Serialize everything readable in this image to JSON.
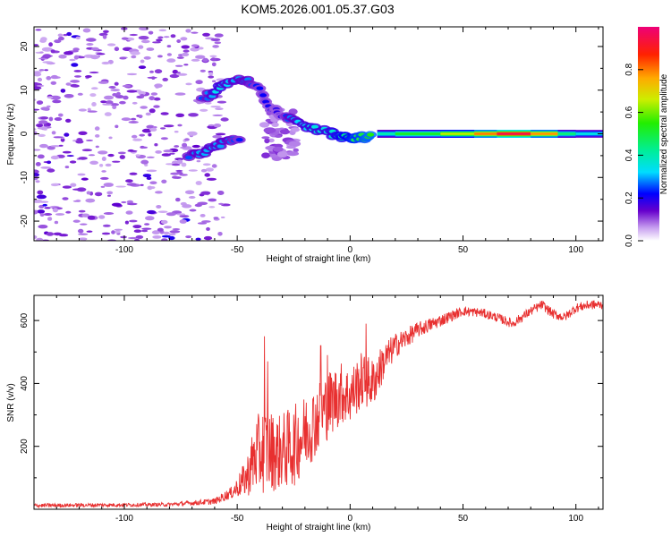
{
  "title": "KOM5.2026.001.05.37.G03",
  "chart_data": [
    {
      "type": "heatmap",
      "xlabel": "Height of straight line (km)",
      "ylabel": "Frequency (Hz)",
      "xlim": [
        -140,
        112
      ],
      "ylim": [
        -24.5,
        24.5
      ],
      "xticks": [
        -100,
        -50,
        0,
        50,
        100
      ],
      "yticks": [
        -20,
        -10,
        0,
        10,
        20
      ],
      "colorbar": {
        "label": "Normalized spectral amplitude",
        "range": [
          0,
          1
        ],
        "ticks": [
          "0.0",
          "0.2",
          "0.4",
          "0.6",
          "0.8"
        ]
      },
      "signal_track": [
        {
          "x": -65,
          "f": 8.0,
          "amp": 0.25
        },
        {
          "x": -58,
          "f": 10.5,
          "amp": 0.35
        },
        {
          "x": -52,
          "f": 12.0,
          "amp": 0.3
        },
        {
          "x": -46,
          "f": 12.5,
          "amp": 0.28
        },
        {
          "x": -40,
          "f": 10.0,
          "amp": 0.22
        },
        {
          "x": -35,
          "f": 6.0,
          "amp": 0.2
        },
        {
          "x": -30,
          "f": 4.5,
          "amp": 0.18
        },
        {
          "x": -25,
          "f": 3.0,
          "amp": 0.3
        },
        {
          "x": -18,
          "f": 1.5,
          "amp": 0.35
        },
        {
          "x": -10,
          "f": 0.5,
          "amp": 0.35
        },
        {
          "x": -5,
          "f": -0.8,
          "amp": 0.4
        },
        {
          "x": 0,
          "f": -1.0,
          "amp": 0.45
        },
        {
          "x": 5,
          "f": -0.8,
          "amp": 0.5
        },
        {
          "x": 10,
          "f": -0.5,
          "amp": 0.55
        }
      ],
      "signal_track_mirror": [
        {
          "x": -72,
          "f": -5.0,
          "amp": 0.25
        },
        {
          "x": -66,
          "f": -4.5,
          "amp": 0.3
        },
        {
          "x": -60,
          "f": -3.0,
          "amp": 0.3
        },
        {
          "x": -54,
          "f": -1.5,
          "amp": 0.28
        },
        {
          "x": -48,
          "f": -1.0,
          "amp": 0.22
        }
      ],
      "steady_band": {
        "f": 0,
        "segments": [
          {
            "x0": 12,
            "x1": 20,
            "amp": 0.4
          },
          {
            "x0": 20,
            "x1": 40,
            "amp": 0.52
          },
          {
            "x0": 40,
            "x1": 55,
            "amp": 0.65
          },
          {
            "x0": 55,
            "x1": 65,
            "amp": 0.8
          },
          {
            "x0": 65,
            "x1": 80,
            "amp": 0.95
          },
          {
            "x0": 80,
            "x1": 92,
            "amp": 0.78
          },
          {
            "x0": 92,
            "x1": 100,
            "amp": 0.45
          },
          {
            "x0": 100,
            "x1": 112,
            "amp": 0.35
          }
        ]
      },
      "noise_region": {
        "x0": -140,
        "x1": -55,
        "amp": 0.05
      }
    },
    {
      "type": "line",
      "xlabel": "Height of straight line (km)",
      "ylabel": "SNR (v/v)",
      "xlim": [
        -140,
        112
      ],
      "ylim": [
        0,
        680
      ],
      "xticks": [
        -100,
        -50,
        0,
        50,
        100
      ],
      "yticks": [
        200,
        400,
        600
      ],
      "series": [
        {
          "name": "SNR",
          "color": "#e83030",
          "envelope": [
            {
              "x": -140,
              "mean": 12,
              "noise": 6
            },
            {
              "x": -80,
              "mean": 15,
              "noise": 6
            },
            {
              "x": -60,
              "mean": 25,
              "noise": 10
            },
            {
              "x": -52,
              "mean": 55,
              "noise": 20
            },
            {
              "x": -46,
              "mean": 100,
              "noise": 60
            },
            {
              "x": -42,
              "mean": 170,
              "noise": 120
            },
            {
              "x": -38,
              "mean": 190,
              "noise": 140
            },
            {
              "x": -32,
              "mean": 180,
              "noise": 120
            },
            {
              "x": -25,
              "mean": 200,
              "noise": 130
            },
            {
              "x": -18,
              "mean": 260,
              "noise": 120
            },
            {
              "x": -10,
              "mean": 330,
              "noise": 110
            },
            {
              "x": -4,
              "mean": 370,
              "noise": 100
            },
            {
              "x": 0,
              "mean": 360,
              "noise": 90
            },
            {
              "x": 5,
              "mean": 410,
              "noise": 90
            },
            {
              "x": 10,
              "mean": 400,
              "noise": 80
            },
            {
              "x": 15,
              "mean": 470,
              "noise": 60
            },
            {
              "x": 20,
              "mean": 520,
              "noise": 40
            },
            {
              "x": 30,
              "mean": 570,
              "noise": 25
            },
            {
              "x": 40,
              "mean": 600,
              "noise": 20
            },
            {
              "x": 50,
              "mean": 630,
              "noise": 15
            },
            {
              "x": 58,
              "mean": 625,
              "noise": 15
            },
            {
              "x": 65,
              "mean": 610,
              "noise": 15
            },
            {
              "x": 72,
              "mean": 590,
              "noise": 15
            },
            {
              "x": 80,
              "mean": 630,
              "noise": 15
            },
            {
              "x": 85,
              "mean": 650,
              "noise": 15
            },
            {
              "x": 90,
              "mean": 620,
              "noise": 15
            },
            {
              "x": 95,
              "mean": 610,
              "noise": 15
            },
            {
              "x": 100,
              "mean": 640,
              "noise": 15
            },
            {
              "x": 106,
              "mean": 650,
              "noise": 15
            },
            {
              "x": 112,
              "mean": 650,
              "noise": 15
            }
          ],
          "spikes": [
            {
              "x": -38,
              "y": 550
            },
            {
              "x": -36.5,
              "y": 470
            },
            {
              "x": -13,
              "y": 520
            },
            {
              "x": -10,
              "y": 490
            },
            {
              "x": 7,
              "y": 590
            }
          ]
        }
      ]
    }
  ]
}
